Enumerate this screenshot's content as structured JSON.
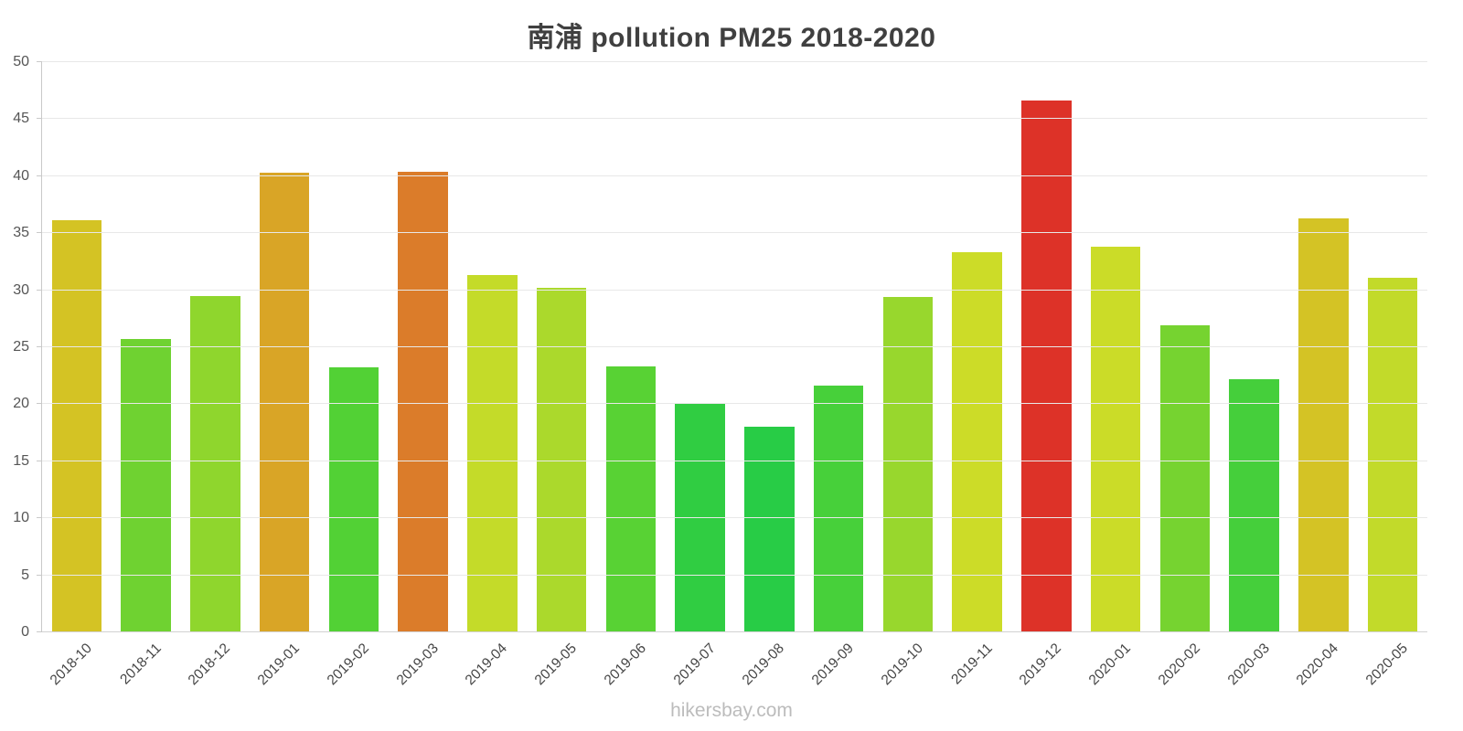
{
  "title": "南浦 pollution PM25 2018-2020",
  "footer": "hikersbay.com",
  "chart_data": {
    "type": "bar",
    "title": "南浦 pollution PM25 2018-2020",
    "xlabel": "",
    "ylabel": "",
    "ylim": [
      0,
      50
    ],
    "ytick_interval": 5,
    "grid": true,
    "legend": "none",
    "categories": [
      "2018-10",
      "2018-11",
      "2018-12",
      "2019-01",
      "2019-02",
      "2019-03",
      "2019-04",
      "2019-05",
      "2019-06",
      "2019-07",
      "2019-08",
      "2019-09",
      "2019-10",
      "2019-11",
      "2019-12",
      "2020-01",
      "2020-02",
      "2020-03",
      "2020-04",
      "2020-05"
    ],
    "values": [
      36.1,
      25.7,
      29.5,
      40.3,
      23.2,
      40.4,
      31.3,
      30.2,
      23.3,
      20.0,
      18.0,
      21.6,
      29.4,
      33.3,
      46.6,
      33.8,
      26.9,
      22.2,
      36.3,
      31.1
    ],
    "bar_colors": [
      "#d4c324",
      "#6fd231",
      "#8fd62d",
      "#d9a526",
      "#52d135",
      "#db7c2a",
      "#c4db29",
      "#abd92c",
      "#58d234",
      "#30cd42",
      "#28cc46",
      "#47d03a",
      "#98d72d",
      "#ccdc28",
      "#dd3228",
      "#cbdc28",
      "#76d330",
      "#45cf3b",
      "#d4c325",
      "#c2da2a"
    ],
    "grid_color": "#e8e8e8",
    "axis_color": "#c9c9c9",
    "tick_label_color": "#555555",
    "x_label_color": "#454545",
    "title_color": "#404040"
  }
}
